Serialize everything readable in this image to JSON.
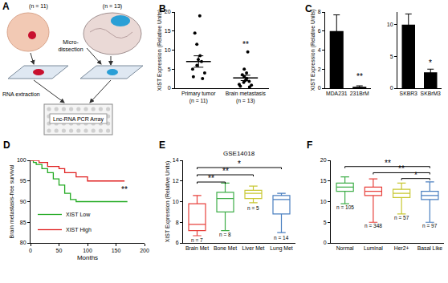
{
  "diagram": {
    "panel": "A",
    "left_n": "(n = 11)",
    "right_n": "(n = 13)",
    "step": [
      "Micro-",
      "dissection"
    ],
    "extraction": "RNA extraction",
    "array": "Lnc-RNA PCR Array"
  },
  "chart_data": [
    {
      "panel": "B",
      "type": "scatter",
      "categories": [
        "Primary tumor (n = 11)",
        "Brain metastasis (n = 13)"
      ],
      "values": [
        [
          19,
          14.5,
          11.5,
          8.5,
          7.5,
          7,
          6,
          5,
          4,
          3,
          2.5
        ],
        [
          9.5,
          5,
          4,
          3.5,
          3,
          2.5,
          2,
          1.8,
          1.5,
          1,
          0.8,
          0.5,
          0.3
        ]
      ],
      "means": [
        7,
        2.7
      ],
      "errors": [
        1.5,
        0.7
      ],
      "color": "#000000",
      "y_label": "XIST Expression (Relative Units)",
      "ylim": [
        0,
        20
      ],
      "yticks": [
        0,
        5,
        10,
        15,
        20
      ],
      "annotations": [
        {
          "text": "**",
          "x": "Brain metastasis (n = 13)",
          "y": 11.5
        }
      ]
    },
    {
      "panel": "C",
      "type": "bar",
      "categories": [
        "MDA231",
        "231BrM"
      ],
      "values": [
        6,
        0.15
      ],
      "errors": [
        1.7,
        0.1
      ],
      "color": "#000000",
      "y_label": "XIST Expression (Relative Units)",
      "ylim": [
        0,
        8
      ],
      "yticks": [
        0,
        2,
        4,
        6,
        8
      ],
      "annotations": [
        {
          "text": "**",
          "x": "231BrM",
          "y": 1.2
        }
      ]
    },
    {
      "type": "bar",
      "categories": [
        "SKBR3",
        "SKBrM3"
      ],
      "values": [
        10,
        2.5
      ],
      "errors": [
        1.7,
        0.5
      ],
      "color": "#000000",
      "ylim": [
        0,
        12
      ],
      "yticks": [
        0,
        5,
        10
      ],
      "annotations": [
        {
          "text": "*",
          "x": "SKBrM3",
          "y": 4
        }
      ]
    },
    {
      "panel": "D",
      "type": "line",
      "x_label": "Months",
      "y_label": "Brain metastasis-free survival",
      "xlim": [
        0,
        200
      ],
      "xticks": [
        0,
        50,
        100,
        150,
        200
      ],
      "ylim": [
        80,
        100
      ],
      "yticks": [
        80,
        85,
        90,
        95,
        100
      ],
      "legend": "lower left",
      "series": [
        {
          "name": "XIST Low",
          "color": "#22aa22",
          "x": [
            0,
            5,
            10,
            20,
            30,
            40,
            50,
            60,
            70,
            80,
            170
          ],
          "values": [
            100,
            99.5,
            99,
            98,
            97,
            95.5,
            94,
            92,
            90.5,
            90,
            90
          ]
        },
        {
          "name": "XIST High",
          "color": "#e02020",
          "x": [
            0,
            15,
            30,
            50,
            60,
            80,
            100,
            165
          ],
          "values": [
            100,
            99.5,
            98.5,
            98,
            97,
            96,
            95,
            95
          ]
        }
      ],
      "annotations": [
        {
          "text": "**",
          "x": 165,
          "y": 93
        }
      ]
    },
    {
      "panel": "E",
      "type": "box",
      "title": "GSE14018",
      "categories": [
        "Brain Met",
        "Bone Met",
        "Liver Met",
        "Lung Met"
      ],
      "colors": [
        "#e8413c",
        "#3fae49",
        "#c8c832",
        "#4a7fc0"
      ],
      "min": [
        6.7,
        7.2,
        9.9,
        7
      ],
      "q1": [
        7.2,
        9,
        10.3,
        8.8
      ],
      "median": [
        7.8,
        10.3,
        10.8,
        10.2
      ],
      "q3": [
        9.8,
        10.9,
        11.1,
        10.6
      ],
      "max": [
        10.6,
        11.8,
        11.5,
        10.8
      ],
      "y_label": "XIST Expression (Relative Units)",
      "ylim": [
        6,
        14
      ],
      "yticks": [
        6,
        8,
        10,
        12,
        14
      ],
      "annotations": [
        {
          "text": "n = 7",
          "x": "Brain Met",
          "y": 6.3
        },
        {
          "text": "n = 8",
          "x": "Bone Met",
          "y": 6.8
        },
        {
          "text": "n = 5",
          "x": "Liver Met",
          "y": 9.4
        },
        {
          "text": "n = 14",
          "x": "Lung Met",
          "y": 6.5
        }
      ],
      "significance": [
        {
          "from": "Brain Met",
          "to": "Bone Met",
          "y": 11.9,
          "text": "**"
        },
        {
          "from": "Brain Met",
          "to": "Liver Met",
          "y": 12.6,
          "text": "**"
        },
        {
          "from": "Brain Met",
          "to": "Lung Met",
          "y": 13.3,
          "text": "*"
        }
      ]
    },
    {
      "panel": "F",
      "type": "box",
      "categories": [
        "Normal",
        "Luminal",
        "Her2+",
        "Basal Like"
      ],
      "colors": [
        "#3fae49",
        "#e8413c",
        "#c8c832",
        "#4a7fc0"
      ],
      "min": [
        9.5,
        5,
        7,
        5
      ],
      "q1": [
        12.5,
        11.5,
        11,
        10.5
      ],
      "median": [
        13.5,
        12.5,
        12,
        11.5
      ],
      "q3": [
        14.5,
        13.5,
        13,
        12.5
      ],
      "max": [
        16,
        15.5,
        14.5,
        14.8
      ],
      "ylim": [
        0,
        20
      ],
      "yticks": [
        0,
        5,
        10,
        15,
        20
      ],
      "annotations": [
        {
          "text": "n = 105",
          "x": "Normal",
          "y": 8.7
        },
        {
          "text": "n = 348",
          "x": "Luminal",
          "y": 4.2
        },
        {
          "text": "n = 57",
          "x": "Her2+",
          "y": 6.2
        },
        {
          "text": "n = 97",
          "x": "Basal Like",
          "y": 4.2
        }
      ],
      "significance": [
        {
          "from": "Normal",
          "to": "Basal Like",
          "y": 18.5,
          "text": "**"
        },
        {
          "from": "Luminal",
          "to": "Basal Like",
          "y": 17,
          "text": "**"
        },
        {
          "from": "Her2+",
          "to": "Basal Like",
          "y": 15.6,
          "text": "*"
        }
      ]
    }
  ]
}
